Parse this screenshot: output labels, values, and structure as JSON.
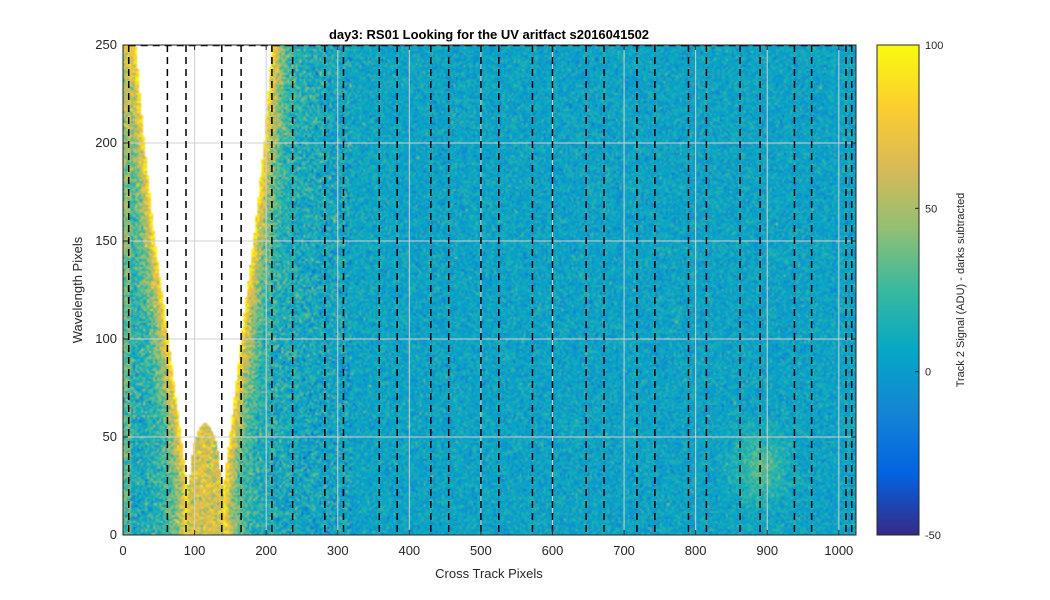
{
  "chart_data": {
    "type": "heatmap",
    "title": "day3: RS01  Looking for the UV aritfact  s2016041502",
    "xlabel": "Cross Track Pixels",
    "ylabel": "Wavelength Pixels",
    "xlim": [
      0,
      1024
    ],
    "ylim": [
      0,
      250
    ],
    "x_ticks": [
      0,
      100,
      200,
      300,
      400,
      500,
      600,
      700,
      800,
      900,
      1000
    ],
    "y_ticks": [
      0,
      50,
      100,
      150,
      200,
      250
    ],
    "grid": true,
    "colormap": "parula",
    "colorbar": {
      "label": "Track 2 Signal (ADU) - darks subtracted",
      "clim": [
        -50,
        100
      ],
      "ticks": [
        -50,
        0,
        50,
        100
      ]
    },
    "background_value": 5,
    "saturated_gap": {
      "description_hidden": true,
      "left_edge": [
        [
          90,
          25
        ],
        [
          78,
          60
        ],
        [
          60,
          110
        ],
        [
          45,
          150
        ],
        [
          30,
          200
        ],
        [
          18,
          250
        ]
      ],
      "right_edge": [
        [
          140,
          25
        ],
        [
          152,
          60
        ],
        [
          168,
          110
        ],
        [
          182,
          150
        ],
        [
          197,
          200
        ],
        [
          208,
          250
        ]
      ],
      "bump": {
        "x": [
          93,
          137
        ],
        "peak_y": 57
      }
    },
    "faint_feature": {
      "x": 890,
      "y": 35,
      "value": 25
    },
    "dashed_lines_x": [
      8,
      62,
      88,
      138,
      165,
      208,
      237,
      282,
      308,
      358,
      383,
      430,
      455,
      500,
      525,
      572,
      600,
      647,
      672,
      718,
      743,
      790,
      815,
      862,
      890,
      938,
      962,
      1010,
      1018
    ],
    "top_boundary_y": 250
  },
  "colors": {
    "parula_stops": [
      "#352a87",
      "#0363e1",
      "#1485d4",
      "#06a7c6",
      "#38b99e",
      "#92bf73",
      "#d9ba56",
      "#fcce2e",
      "#f9fb0e"
    ]
  }
}
